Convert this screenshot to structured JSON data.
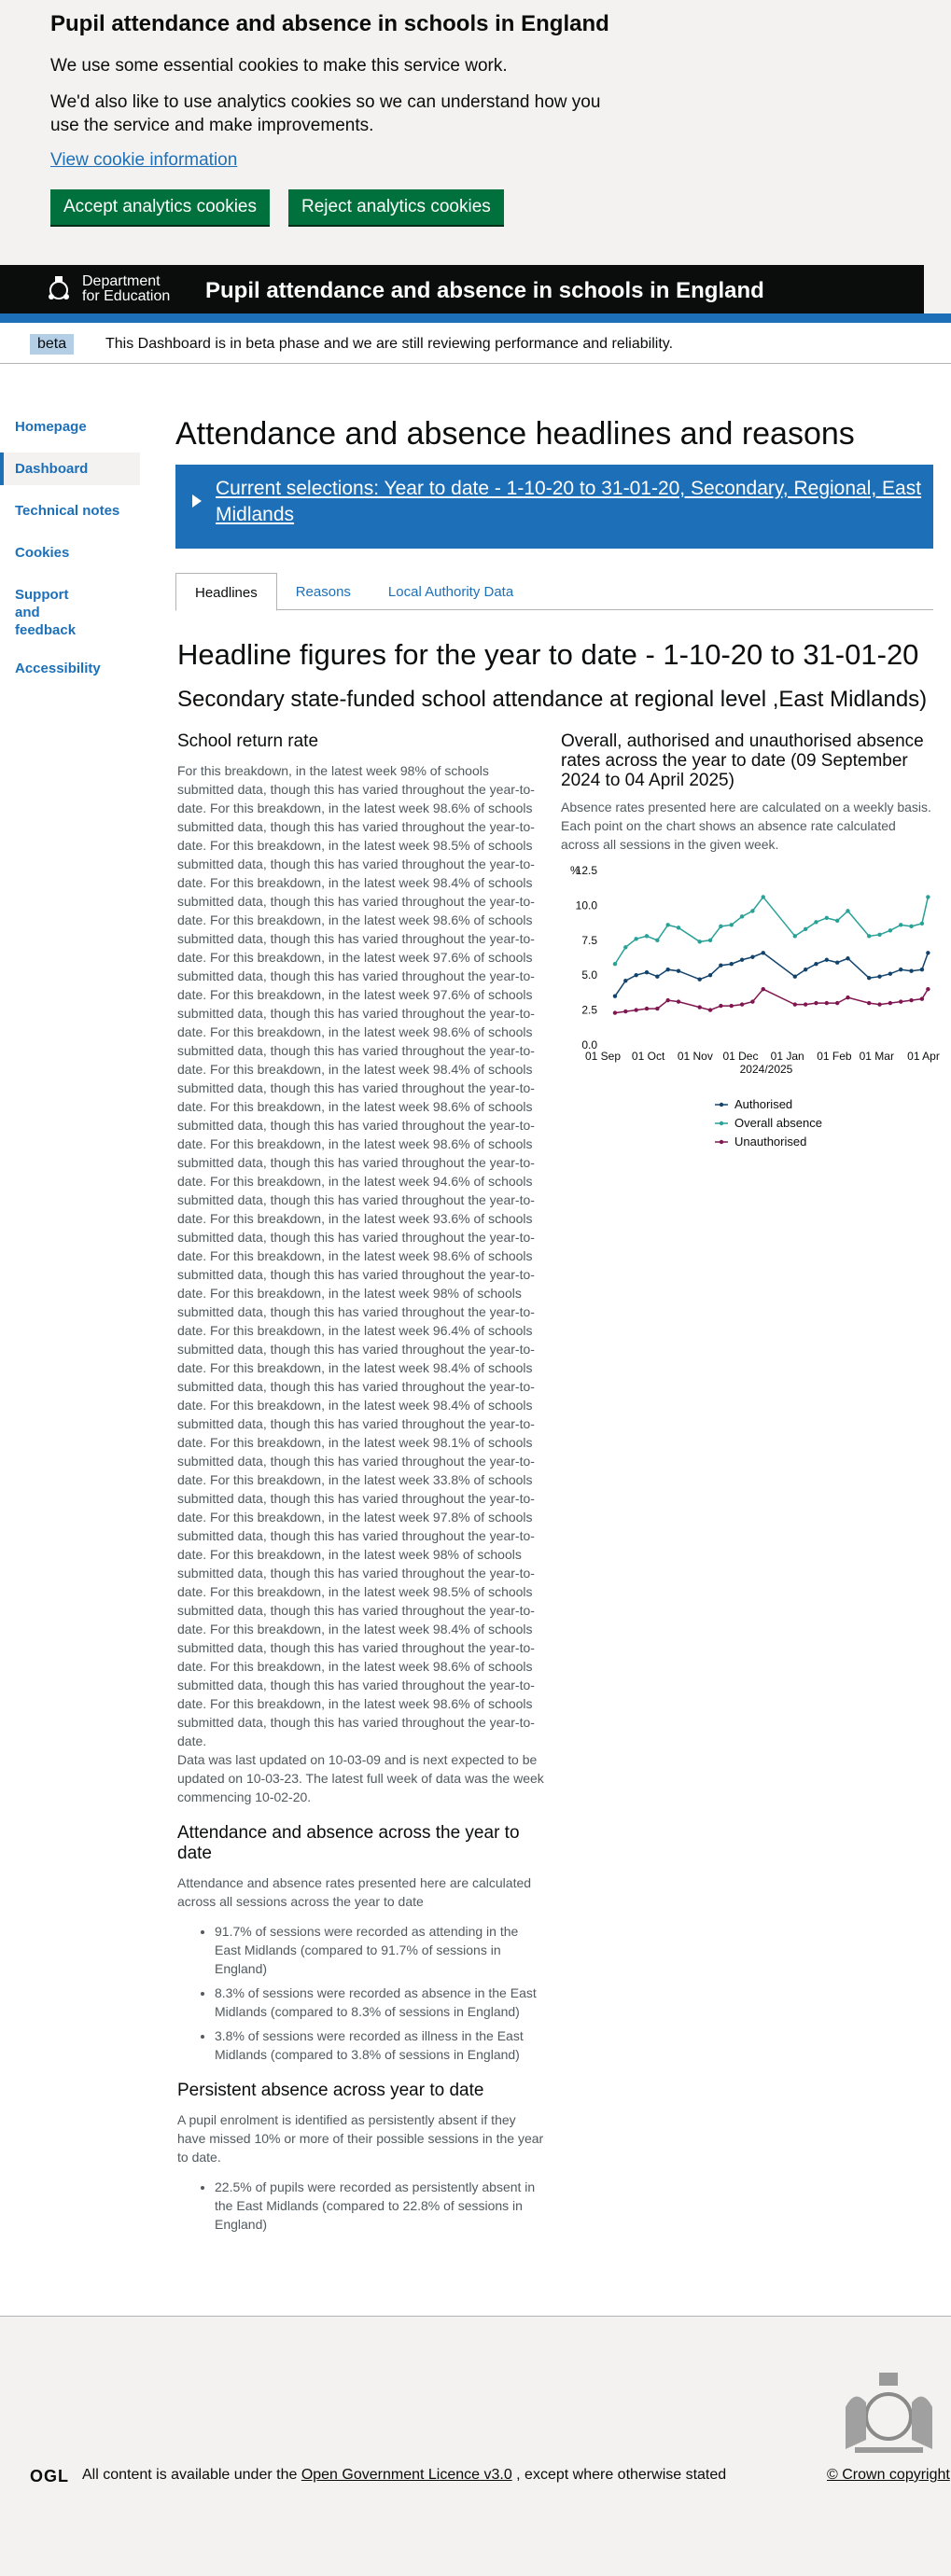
{
  "cookie": {
    "title": "Pupil attendance and absence in schools in England",
    "p1": "We use some essential cookies to make this service work.",
    "p2": "We'd also like to use analytics cookies so we can understand how you use the service and make improvements.",
    "link": "View cookie information",
    "accept": "Accept analytics cookies",
    "reject": "Reject analytics cookies"
  },
  "header": {
    "dept_line1": "Department",
    "dept_line2": "for Education",
    "title": "Pupil attendance and absence in schools in England"
  },
  "beta": {
    "tag": "beta",
    "text": "This Dashboard is in beta phase and we are still reviewing performance and reliability."
  },
  "sidenav": [
    "Homepage",
    "Dashboard",
    "Technical notes",
    "Cookies",
    "Support and feedback",
    "Accessibility"
  ],
  "main": {
    "h1": "Attendance and absence headlines and reasons",
    "selections": "Current selections: Year to date - 1-10-20 to 31-01-20, Secondary, Regional, East Midlands",
    "tabs": [
      "Headlines",
      "Reasons",
      "Local Authority Data"
    ],
    "h2": "Headline figures for the year to date - 1-10-20 to 31-01-20",
    "h3": "Secondary state-funded school attendance at regional level ,East Midlands)",
    "school_return": {
      "title": "School return rate",
      "text": "For this breakdown, in the latest week 98% of schools submitted data, though this has varied throughout the year-to-date. For this breakdown, in the latest week 98.6% of schools submitted data, though this has varied throughout the year-to-date. For this breakdown, in the latest week 98.5% of schools submitted data, though this has varied throughout the year-to-date. For this breakdown, in the latest week 98.4% of schools submitted data, though this has varied throughout the year-to-date. For this breakdown, in the latest week 98.6% of schools submitted data, though this has varied throughout the year-to-date. For this breakdown, in the latest week 97.6% of schools submitted data, though this has varied throughout the year-to-date. For this breakdown, in the latest week 97.6% of schools submitted data, though this has varied throughout the year-to-date. For this breakdown, in the latest week 98.6% of schools submitted data, though this has varied throughout the year-to-date. For this breakdown, in the latest week 98.4% of schools submitted data, though this has varied throughout the year-to-date. For this breakdown, in the latest week 98.6% of schools submitted data, though this has varied throughout the year-to-date. For this breakdown, in the latest week 98.6% of schools submitted data, though this has varied throughout the year-to-date. For this breakdown, in the latest week 94.6% of schools submitted data, though this has varied throughout the year-to-date. For this breakdown, in the latest week 93.6% of schools submitted data, though this has varied throughout the year-to-date. For this breakdown, in the latest week 98.6% of schools submitted data, though this has varied throughout the year-to-date. For this breakdown, in the latest week 98% of schools submitted data, though this has varied throughout the year-to-date. For this breakdown, in the latest week 96.4% of schools submitted data, though this has varied throughout the year-to-date. For this breakdown, in the latest week 98.4% of schools submitted data, though this has varied throughout the year-to-date. For this breakdown, in the latest week 98.4% of schools submitted data, though this has varied throughout the year-to-date. For this breakdown, in the latest week 98.1% of schools submitted data, though this has varied throughout the year-to-date. For this breakdown, in the latest week 33.8% of schools submitted data, though this has varied throughout the year-to-date. For this breakdown, in the latest week 97.8% of schools submitted data, though this has varied throughout the year-to-date. For this breakdown, in the latest week 98% of schools submitted data, though this has varied throughout the year-to-date. For this breakdown, in the latest week 98.5% of schools submitted data, though this has varied throughout the year-to-date. For this breakdown, in the latest week 98.4% of schools submitted data, though this has varied throughout the year-to-date. For this breakdown, in the latest week 98.6% of schools submitted data, though this has varied throughout the year-to-date. For this breakdown, in the latest week 98.6% of schools submitted data, though this has varied throughout the year-to-date.",
      "updated": "Data was last updated on 10-03-09 and is next expected to be updated on 10-03-23. The latest full week of data was the week commencing 10-02-20."
    },
    "across_year": {
      "title": "Attendance and absence across the year to date",
      "intro": "Attendance and absence rates presented here are calculated across all sessions across the year to date",
      "bullets": [
        "91.7% of sessions were recorded as attending in the East Midlands (compared to 91.7% of sessions in England)",
        "8.3% of sessions were recorded as absence in the East Midlands (compared to 8.3% of sessions in England)",
        "3.8% of sessions were recorded as illness in the East Midlands (compared to 3.8% of sessions in England)"
      ]
    },
    "persistent": {
      "title": "Persistent absence across year to date",
      "intro": "A pupil enrolment is identified as persistently absent if they have missed 10% or more of their possible sessions in the year to date.",
      "bullets": [
        "22.5% of pupils were recorded as persistently absent in the East Midlands (compared to 22.8% of sessions in England)"
      ]
    },
    "chart_panel": {
      "title": "Overall, authorised and unauthorised absence rates across the year to date (09 September 2024 to 04 April 2025)",
      "note": "Absence rates presented here are calculated on a weekly basis. Each point on the chart shows an absence rate calculated across all sessions in the given week."
    }
  },
  "chart_data": {
    "type": "line",
    "ylabel": "%",
    "xlabel": "2024/2025",
    "ylim": [
      0,
      12.5
    ],
    "yticks": [
      "0.0",
      "2.5",
      "5.0",
      "7.5",
      "10.0",
      "12.5"
    ],
    "xticks": [
      "01 Sep",
      "01 Oct",
      "01 Nov",
      "01 Dec",
      "01 Jan",
      "01 Feb",
      "01 Mar",
      "01 Apr"
    ],
    "x": [
      "2024-09-09",
      "2024-09-16",
      "2024-09-23",
      "2024-09-30",
      "2024-10-07",
      "2024-10-14",
      "2024-10-21",
      "2024-11-04",
      "2024-11-11",
      "2024-11-18",
      "2024-11-25",
      "2024-12-02",
      "2024-12-09",
      "2024-12-16",
      "2025-01-06",
      "2025-01-13",
      "2025-01-20",
      "2025-01-27",
      "2025-02-03",
      "2025-02-10",
      "2025-02-24",
      "2025-03-03",
      "2025-03-10",
      "2025-03-17",
      "2025-03-24",
      "2025-03-31",
      "2025-04-04"
    ],
    "series": [
      {
        "name": "Authorised",
        "color": "#12436d",
        "values": [
          3.5,
          4.6,
          5.0,
          5.2,
          4.9,
          5.4,
          5.3,
          4.7,
          5.0,
          5.7,
          5.8,
          6.1,
          6.3,
          6.6,
          4.9,
          5.4,
          5.8,
          6.1,
          5.9,
          6.2,
          4.8,
          4.9,
          5.1,
          5.4,
          5.3,
          5.4,
          6.6
        ]
      },
      {
        "name": "Overall absence",
        "color": "#28a197",
        "values": [
          5.8,
          7.0,
          7.6,
          7.8,
          7.5,
          8.6,
          8.4,
          7.4,
          7.5,
          8.5,
          8.6,
          9.2,
          9.6,
          10.6,
          7.8,
          8.3,
          8.8,
          9.1,
          8.9,
          9.6,
          7.8,
          7.9,
          8.2,
          8.6,
          8.5,
          8.7,
          10.6
        ]
      },
      {
        "name": "Unauthorised",
        "color": "#801650",
        "values": [
          2.3,
          2.4,
          2.5,
          2.6,
          2.6,
          3.2,
          3.1,
          2.7,
          2.5,
          2.8,
          2.8,
          2.9,
          3.1,
          4.0,
          2.9,
          2.9,
          3.0,
          3.0,
          3.0,
          3.4,
          3.0,
          2.9,
          3.0,
          3.1,
          3.2,
          3.3,
          4.0
        ]
      }
    ],
    "legend": "bottom"
  }
}
